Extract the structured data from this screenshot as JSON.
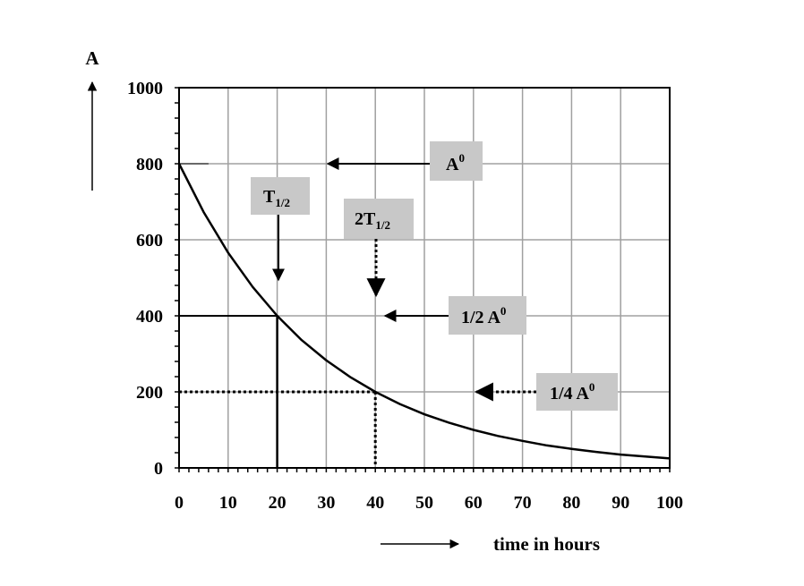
{
  "chart_data": {
    "type": "line",
    "title": "",
    "ylabel": "A",
    "xlabel": "time in hours",
    "xlim": [
      0,
      100
    ],
    "ylim": [
      0,
      1000
    ],
    "x_ticks": [
      "0",
      "10",
      "20",
      "30",
      "40",
      "50",
      "60",
      "70",
      "80",
      "90",
      "100"
    ],
    "y_ticks": [
      "0",
      "200",
      "400",
      "600",
      "800",
      "1000"
    ],
    "grid": true,
    "series": [
      {
        "name": "A",
        "x": [
          0,
          5,
          10,
          15,
          20,
          25,
          30,
          35,
          40,
          45,
          50,
          55,
          60,
          65,
          70,
          75,
          80,
          85,
          90,
          95,
          100
        ],
        "values": [
          800,
          673,
          566,
          476,
          400,
          336,
          283,
          238,
          200,
          168,
          141,
          119,
          100,
          84,
          71,
          59,
          50,
          42,
          35,
          30,
          25
        ]
      }
    ],
    "annotations": [
      {
        "id": "a0",
        "main": "A",
        "sup": "0",
        "points_to_y": 800
      },
      {
        "id": "t_half",
        "main": "T",
        "sub": "1/2",
        "points_to_x": 20
      },
      {
        "id": "two_t_half",
        "main": "2T",
        "sub": "1/2",
        "points_to_x": 40
      },
      {
        "id": "half_a0",
        "main": "1/2 A",
        "sup": "0",
        "points_to_y": 400
      },
      {
        "id": "quarter_a0",
        "main": "1/4 A",
        "sup": "0",
        "points_to_y": 200
      }
    ]
  }
}
